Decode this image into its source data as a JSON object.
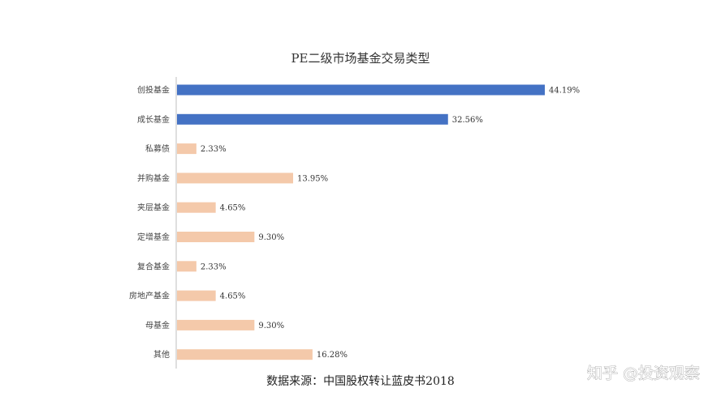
{
  "chart_data": {
    "type": "bar",
    "orientation": "horizontal",
    "title": "PE二级市场基金交易类型",
    "categories": [
      "创投基金",
      "成长基金",
      "私募债",
      "并购基金",
      "夹层基金",
      "定增基金",
      "复合基金",
      "房地产基金",
      "母基金",
      "其他"
    ],
    "values": [
      44.19,
      32.56,
      2.33,
      13.95,
      4.65,
      9.3,
      2.33,
      4.65,
      9.3,
      16.28
    ],
    "value_labels": [
      "44.19%",
      "32.56%",
      "2.33%",
      "13.95%",
      "4.65%",
      "9.30%",
      "2.33%",
      "4.65%",
      "9.30%",
      "16.28%"
    ],
    "xlim": [
      0,
      44.19
    ],
    "grid": false,
    "colors": {
      "highlight": "#4472c4",
      "default": "#f4c9aa",
      "axis": "#bfbfbf"
    },
    "highlighted_categories": [
      "创投基金",
      "成长基金"
    ]
  },
  "source_text": "数据来源：中国股权转让蓝皮书2018",
  "watermark": "知乎 @投资观察"
}
